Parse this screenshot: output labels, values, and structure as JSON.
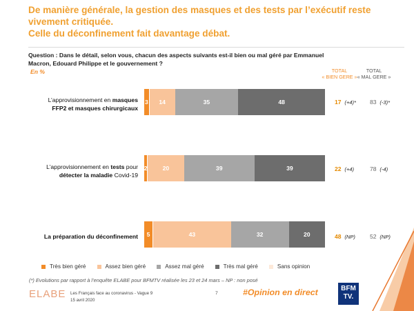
{
  "headline": {
    "line1": "De manière générale, la gestion des masques et des tests par l’exécutif reste",
    "line2": "vivement critiquée.",
    "line3": "Celle du déconfinement fait davantage débat."
  },
  "question": "Question : Dans le détail, selon vous, chacun des aspects suivants est-il bien ou mal géré par Emmanuel Macron, Edouard Philippe et le gouvernement ?",
  "unit": "En %",
  "col_headers": {
    "bien_1": "TOTAL",
    "bien_2": "« BIEN GERE »",
    "mal_1": "TOTAL",
    "mal_2": "« MAL GERE »"
  },
  "colors": {
    "tres_bien": "#f28c28",
    "assez_bien": "#f9c49a",
    "assez_mal": "#a6a6a6",
    "tres_mal": "#6d6d6d",
    "sans_opinion": "#fde9d9",
    "accent": "#f0a030"
  },
  "chart_data": {
    "type": "bar",
    "orientation": "horizontal",
    "stacked": true,
    "categories": [
      "L’approvisionnement en masques FFP2 et masques chirurgicaux",
      "L’approvisionnement en tests pour détecter la maladie Covid-19",
      "La préparation du déconfinement"
    ],
    "series": [
      {
        "name": "Très bien géré",
        "values": [
          3,
          2,
          5
        ]
      },
      {
        "name": "Assez bien géré",
        "values": [
          14,
          20,
          43
        ]
      },
      {
        "name": "Assez mal géré",
        "values": [
          35,
          39,
          32
        ]
      },
      {
        "name": "Très mal géré",
        "values": [
          48,
          39,
          20
        ]
      },
      {
        "name": "Sans opinion",
        "values": [
          0,
          0,
          0
        ]
      }
    ],
    "totals": [
      {
        "bien": "17",
        "bien_change": "(+4)*",
        "mal": "83",
        "mal_change": "(-3)*"
      },
      {
        "bien": "22",
        "bien_change": "(+4)",
        "mal": "78",
        "mal_change": "(-4)"
      },
      {
        "bien": "48",
        "bien_change": "(NP)",
        "mal": "52",
        "mal_change": "(NP)"
      }
    ],
    "legend_position": "bottom"
  },
  "rows": [
    {
      "label_pre": "L’approvisionnement en ",
      "label_bold": "masques",
      "label_line2_bold": "FFP2 et masques chirurgicaux",
      "label_line2": ""
    },
    {
      "label_pre": "L’approvisionnement en ",
      "label_bold": "tests",
      "label_post": " pour",
      "label_line2_bold": "détecter la maladie",
      "label_line2": " Covid-19"
    },
    {
      "label_bold": "La préparation du déconfinement"
    }
  ],
  "footnote": "(*) Evolutions par rapport à l’enquête ELABE pour BFMTV réalisée les 23 et 24 mars – NP : non posé",
  "footer": {
    "logo": "ELABE",
    "survey": "Les Français face au coronavirus - Vague 9",
    "date": "15 avril 2020",
    "page": "7",
    "hashtag": "#Opinion en direct",
    "bfm": "BFM",
    "tv": "TV."
  }
}
